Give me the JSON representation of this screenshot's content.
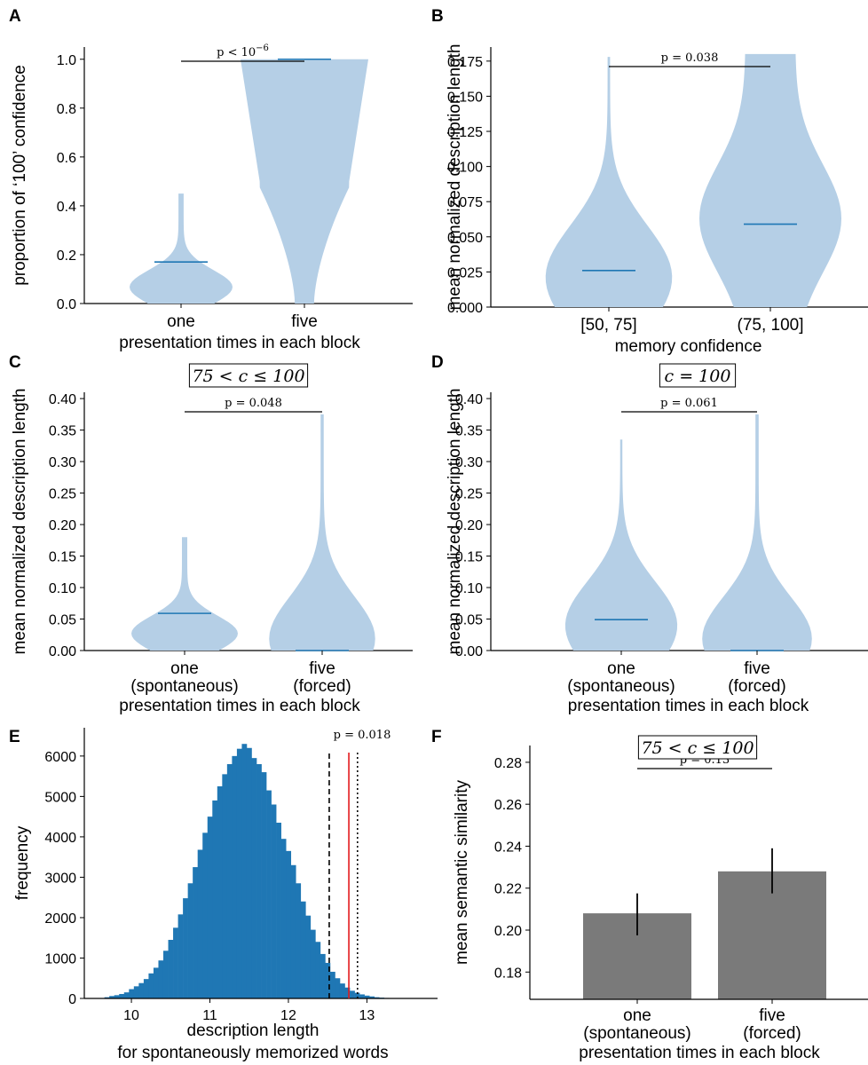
{
  "colors": {
    "violin_fill": "#b5cfe6",
    "median_line": "#1f77b4",
    "hist_fill": "#1f77b4",
    "bar_fill": "#7a7a7a",
    "observed_line": "#e31a1c",
    "axis": "#000000"
  },
  "chart_data": [
    {
      "panel": "A",
      "type": "violin",
      "categories": [
        "one",
        "five"
      ],
      "xlabel": "presentation times in each block",
      "ylabel": "proportion of ‘100’ confidence",
      "ylim": [
        0,
        1.05
      ],
      "yticks": [
        "0.0",
        "0.2",
        "0.4",
        "0.6",
        "0.8",
        "1.0"
      ],
      "medians": [
        0.17,
        1.0
      ],
      "ranges": [
        [
          0.0,
          0.45
        ],
        [
          0.0,
          1.0
        ]
      ],
      "pvalue": {
        "base": "p < 10",
        "exp": "−6"
      }
    },
    {
      "panel": "B",
      "type": "violin",
      "categories": [
        "[50, 75]",
        "(75, 100]"
      ],
      "xlabel": "memory confidence",
      "ylabel": "mean normalized description length",
      "ylim": [
        0,
        0.185
      ],
      "yticks": [
        "0.000",
        "0.025",
        "0.050",
        "0.075",
        "0.100",
        "0.125",
        "0.150",
        "0.175"
      ],
      "medians": [
        0.026,
        0.059
      ],
      "ranges": [
        [
          0.0,
          0.178
        ],
        [
          0.0,
          0.18
        ]
      ],
      "pvalue": "p = 0.038"
    },
    {
      "panel": "C",
      "type": "violin",
      "title": "75 < c ≤ 100",
      "categories": [
        "one",
        "five"
      ],
      "category_sublabels": [
        "(spontaneous)",
        "(forced)"
      ],
      "xlabel": "presentation times in each block",
      "ylabel": "mean normalized description length",
      "ylim": [
        0,
        0.41
      ],
      "yticks": [
        "0.00",
        "0.05",
        "0.10",
        "0.15",
        "0.20",
        "0.25",
        "0.30",
        "0.35",
        "0.40"
      ],
      "medians": [
        0.059,
        0.0
      ],
      "ranges": [
        [
          0.0,
          0.18
        ],
        [
          0.0,
          0.375
        ]
      ],
      "pvalue": "p = 0.048"
    },
    {
      "panel": "D",
      "type": "violin",
      "title": "c = 100",
      "categories": [
        "one",
        "five"
      ],
      "category_sublabels": [
        "(spontaneous)",
        "(forced)"
      ],
      "xlabel": "presentation times in each block",
      "ylabel": "mean normalized description length",
      "ylim": [
        0,
        0.41
      ],
      "yticks": [
        "0.00",
        "0.05",
        "0.10",
        "0.15",
        "0.20",
        "0.25",
        "0.30",
        "0.35",
        "0.40"
      ],
      "medians": [
        0.049,
        0.0
      ],
      "ranges": [
        [
          0.0,
          0.335
        ],
        [
          0.0,
          0.375
        ]
      ],
      "pvalue": "p = 0.061"
    },
    {
      "panel": "E",
      "type": "histogram",
      "xlabel": "description length",
      "xlabel2": "for spontaneously memorized words",
      "ylabel": "frequency",
      "xlim": [
        9.4,
        13.9
      ],
      "ylim": [
        0,
        6700
      ],
      "xticks": [
        "10",
        "11",
        "12",
        "13"
      ],
      "yticks": [
        "0",
        "1000",
        "2000",
        "3000",
        "4000",
        "5000",
        "6000"
      ],
      "bin_width": 0.0625,
      "bin_centers": [
        9.6875,
        9.75,
        9.8125,
        9.875,
        9.9375,
        10.0,
        10.0625,
        10.125,
        10.1875,
        10.25,
        10.3125,
        10.375,
        10.4375,
        10.5,
        10.5625,
        10.625,
        10.6875,
        10.75,
        10.8125,
        10.875,
        10.9375,
        11.0,
        11.0625,
        11.125,
        11.1875,
        11.25,
        11.3125,
        11.375,
        11.4375,
        11.5,
        11.5625,
        11.625,
        11.6875,
        11.75,
        11.8125,
        11.875,
        11.9375,
        12.0,
        12.0625,
        12.125,
        12.1875,
        12.25,
        12.3125,
        12.375,
        12.4375,
        12.5,
        12.5625,
        12.625,
        12.6875,
        12.75,
        12.8125,
        12.875,
        12.9375,
        13.0,
        13.0625,
        13.125,
        13.1875,
        13.25,
        13.3125,
        13.375,
        13.4375,
        13.5
      ],
      "counts": [
        30,
        60,
        80,
        110,
        150,
        230,
        300,
        380,
        480,
        620,
        760,
        940,
        1180,
        1450,
        1750,
        2080,
        2480,
        2850,
        3250,
        3680,
        4100,
        4500,
        4900,
        5250,
        5550,
        5800,
        6000,
        6180,
        6300,
        6200,
        5950,
        5800,
        5600,
        5150,
        4800,
        4350,
        3950,
        3650,
        3300,
        2850,
        2400,
        2050,
        1700,
        1400,
        1100,
        880,
        660,
        500,
        370,
        270,
        190,
        140,
        100,
        70,
        50,
        30,
        20,
        12,
        8,
        5,
        3,
        2
      ],
      "vlines": [
        {
          "x": 12.52,
          "style": "dashed",
          "color": "#000000"
        },
        {
          "x": 12.77,
          "style": "solid",
          "color": "#e31a1c"
        },
        {
          "x": 12.88,
          "style": "dotted",
          "color": "#000000"
        }
      ],
      "pvalue": "p = 0.018"
    },
    {
      "panel": "F",
      "type": "bar",
      "title": "75 < c ≤ 100",
      "categories": [
        "one",
        "five"
      ],
      "category_sublabels": [
        "(spontaneous)",
        "(forced)"
      ],
      "xlabel": "presentation times in each block",
      "ylabel": "mean semantic similarity",
      "ylim": [
        0.167,
        0.288
      ],
      "yticks": [
        "0.18",
        "0.20",
        "0.22",
        "0.24",
        "0.26",
        "0.28"
      ],
      "values": [
        0.208,
        0.228
      ],
      "errors": [
        [
          0.1975,
          0.2175
        ],
        [
          0.2175,
          0.239
        ]
      ],
      "pvalue": "p = 0.13"
    }
  ]
}
